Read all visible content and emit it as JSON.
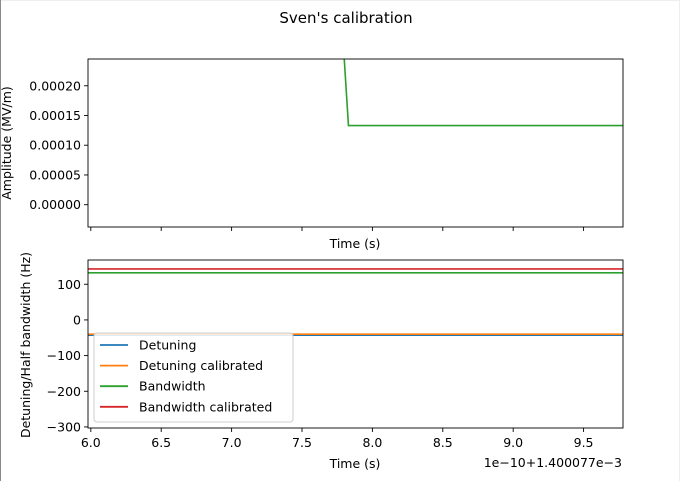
{
  "title": "Sven's calibration",
  "chart_data": [
    {
      "type": "line",
      "panel": "top",
      "xlabel": "Time (s)",
      "ylabel": "Amplitude (MV/m)",
      "xlim": [
        5.98,
        9.78
      ],
      "ylim": [
        -3.75e-05,
        0.000245
      ],
      "yticks": [
        0,
        5e-05,
        0.0001,
        0.00015,
        0.0002
      ],
      "ytick_labels": [
        "0.00000",
        "0.00005",
        "0.00010",
        "0.00015",
        "0.00020"
      ],
      "xticks": [
        6.0,
        6.5,
        7.0,
        7.5,
        8.0,
        8.5,
        9.0,
        9.5
      ],
      "show_xtick_labels": false,
      "grid": false,
      "series": [
        {
          "color": "#2ca02c",
          "x": [
            7.8,
            7.83,
            9.78
          ],
          "y": [
            0.000245,
            0.000133,
            0.000133
          ]
        }
      ]
    },
    {
      "type": "line",
      "panel": "bottom",
      "xlabel": "Time (s)",
      "ylabel": "Detuning/Half bandwidth (Hz)",
      "xlim": [
        5.98,
        9.78
      ],
      "ylim": [
        -303,
        168
      ],
      "yticks": [
        -300,
        -200,
        -100,
        0,
        100
      ],
      "ytick_labels": [
        "−300",
        "−200",
        "−100",
        "0",
        "100"
      ],
      "xticks": [
        6.0,
        6.5,
        7.0,
        7.5,
        8.0,
        8.5,
        9.0,
        9.5
      ],
      "xtick_labels": [
        "6.0",
        "6.5",
        "7.0",
        "7.5",
        "8.0",
        "8.5",
        "9.0",
        "9.5"
      ],
      "x_offset_text": "1e−10+1.400077e−3",
      "legend_placement": "lower-left",
      "grid": false,
      "series": [
        {
          "name": "Detuning",
          "color": "#1f77b4",
          "x": [
            5.98,
            9.78
          ],
          "y": [
            -43,
            -43
          ]
        },
        {
          "name": "Detuning calibrated",
          "color": "#ff7f0e",
          "x": [
            5.98,
            9.78
          ],
          "y": [
            -40,
            -40
          ]
        },
        {
          "name": "Bandwidth",
          "color": "#2ca02c",
          "x": [
            5.98,
            9.78
          ],
          "y": [
            132,
            132
          ]
        },
        {
          "name": "Bandwidth calibrated",
          "color": "#d62728",
          "x": [
            5.98,
            9.78
          ],
          "y": [
            143,
            143
          ]
        }
      ]
    }
  ]
}
